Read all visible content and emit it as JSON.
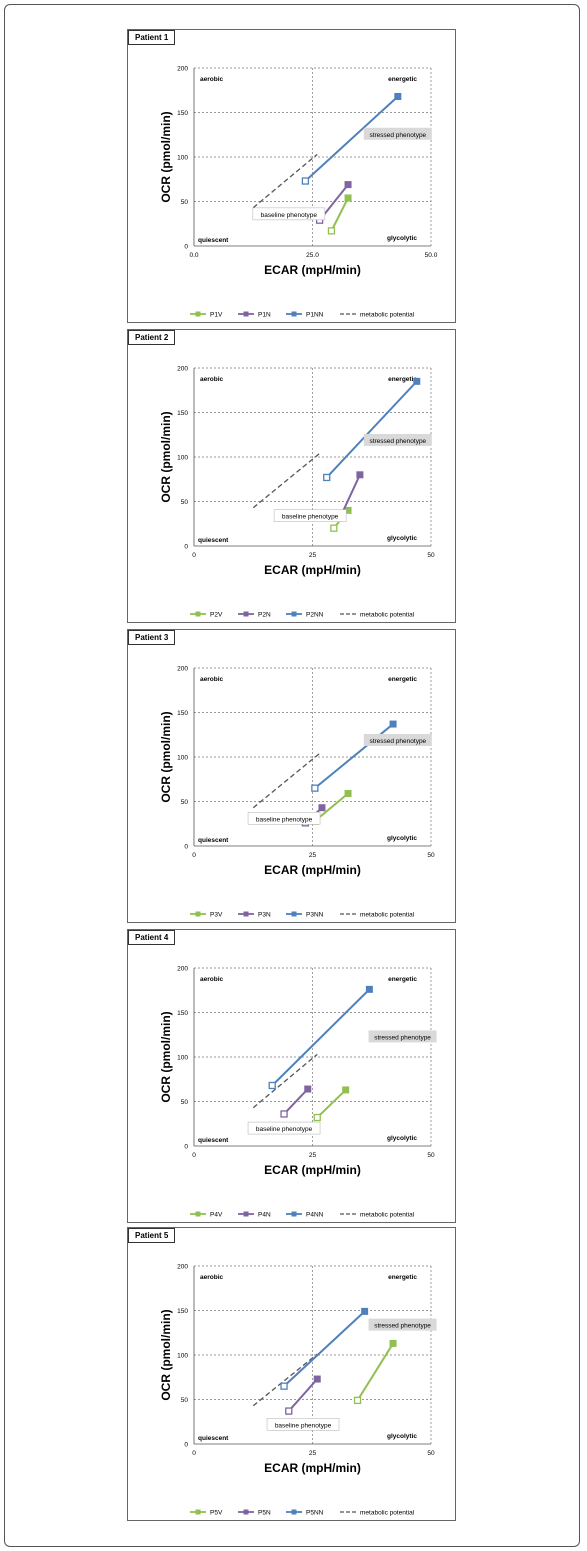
{
  "chart_data": [
    {
      "type": "line",
      "title": "Patient 1",
      "xlabel": "ECAR (mpH/min)",
      "ylabel": "OCR (pmol/min)",
      "xlim": [
        0,
        50
      ],
      "ylim": [
        0,
        200
      ],
      "xticks": [
        "0.0",
        "25.0",
        "50.0"
      ],
      "yticks": [
        "0",
        "50",
        "100",
        "150",
        "200"
      ],
      "quadrants": {
        "aerobic": "aerobic",
        "energetic": "energetic",
        "quiescent": "quiescent",
        "glycolytic": "glycolytic"
      },
      "annotations": {
        "stressed": "stressed phenotype",
        "baseline": "baseline phenotype"
      },
      "baseline_box": [
        20,
        35
      ],
      "stressed_box": [
        43,
        125
      ],
      "potential_line": [
        [
          12.5,
          43
        ],
        [
          26,
          103
        ]
      ],
      "series": [
        {
          "name": "P1V",
          "color": "#92c050",
          "points": [
            [
              29,
              17
            ],
            [
              32.5,
              54
            ]
          ]
        },
        {
          "name": "P1N",
          "color": "#8064a2",
          "points": [
            [
              26.5,
              29
            ],
            [
              32.5,
              69
            ]
          ]
        },
        {
          "name": "P1NN",
          "color": "#4f81bd",
          "points": [
            [
              23.5,
              73
            ],
            [
              43,
              168
            ]
          ]
        }
      ],
      "legend": [
        "P1V",
        "P1N",
        "P1NN",
        "metabolic potential"
      ]
    },
    {
      "type": "line",
      "title": "Patient 2",
      "xlabel": "ECAR (mpH/min)",
      "ylabel": "OCR (pmol/min)",
      "xlim": [
        0,
        50
      ],
      "ylim": [
        0,
        200
      ],
      "xticks": [
        "0",
        "25",
        "50"
      ],
      "yticks": [
        "0",
        "50",
        "100",
        "150",
        "200"
      ],
      "quadrants": {
        "aerobic": "aerobic",
        "energetic": "energetic",
        "quiescent": "quiescent",
        "glycolytic": "glycolytic"
      },
      "annotations": {
        "stressed": "stressed phenotype",
        "baseline": "baseline phenotype"
      },
      "baseline_box": [
        24.5,
        33
      ],
      "stressed_box": [
        43,
        118
      ],
      "potential_line": [
        [
          12.5,
          43
        ],
        [
          26.5,
          104
        ]
      ],
      "series": [
        {
          "name": "P2V",
          "color": "#92c050",
          "points": [
            [
              29.5,
              20
            ],
            [
              32.5,
              40
            ]
          ]
        },
        {
          "name": "P2N",
          "color": "#8064a2",
          "points": [
            [
              31,
              34
            ],
            [
              35,
              80
            ]
          ]
        },
        {
          "name": "P2NN",
          "color": "#4f81bd",
          "points": [
            [
              28,
              77
            ],
            [
              47,
              185
            ]
          ]
        }
      ],
      "legend": [
        "P2V",
        "P2N",
        "P2NN",
        "metabolic potential"
      ]
    },
    {
      "type": "line",
      "title": "Patient 3",
      "xlabel": "ECAR (mpH/min)",
      "ylabel": "OCR (pmol/min)",
      "xlim": [
        0,
        50
      ],
      "ylim": [
        0,
        200
      ],
      "xticks": [
        "0",
        "25",
        "50"
      ],
      "yticks": [
        "0",
        "50",
        "100",
        "150",
        "200"
      ],
      "quadrants": {
        "aerobic": "aerobic",
        "energetic": "energetic",
        "quiescent": "quiescent",
        "glycolytic": "glycolytic"
      },
      "annotations": {
        "stressed": "stressed phenotype",
        "baseline": "baseline phenotype"
      },
      "baseline_box": [
        19,
        30
      ],
      "stressed_box": [
        43,
        118
      ],
      "potential_line": [
        [
          12.5,
          43
        ],
        [
          26.5,
          104
        ]
      ],
      "series": [
        {
          "name": "P3V",
          "color": "#92c050",
          "points": [
            [
              25.5,
              28
            ],
            [
              32.5,
              59
            ]
          ]
        },
        {
          "name": "P3N",
          "color": "#8064a2",
          "points": [
            [
              23.5,
              26
            ],
            [
              27,
              43
            ]
          ]
        },
        {
          "name": "P3NN",
          "color": "#4f81bd",
          "points": [
            [
              25.5,
              65
            ],
            [
              42,
              137
            ]
          ]
        }
      ],
      "legend": [
        "P3V",
        "P3N",
        "P3NN",
        "metabolic potential"
      ]
    },
    {
      "type": "line",
      "title": "Patient 4",
      "xlabel": "ECAR (mpH/min)",
      "ylabel": "OCR (pmol/min)",
      "xlim": [
        0,
        50
      ],
      "ylim": [
        0,
        200
      ],
      "xticks": [
        "0",
        "25",
        "50"
      ],
      "yticks": [
        "0",
        "50",
        "100",
        "150",
        "200"
      ],
      "quadrants": {
        "aerobic": "aerobic",
        "energetic": "energetic",
        "quiescent": "quiescent",
        "glycolytic": "glycolytic"
      },
      "annotations": {
        "stressed": "stressed phenotype",
        "baseline": "baseline phenotype"
      },
      "baseline_box": [
        19,
        19
      ],
      "stressed_box": [
        44,
        122
      ],
      "potential_line": [
        [
          12.5,
          43
        ],
        [
          26,
          103
        ]
      ],
      "series": [
        {
          "name": "P4V",
          "color": "#92c050",
          "points": [
            [
              26,
              32
            ],
            [
              32,
              63
            ]
          ]
        },
        {
          "name": "P4N",
          "color": "#8064a2",
          "points": [
            [
              19,
              36
            ],
            [
              24,
              64
            ]
          ]
        },
        {
          "name": "P4NN",
          "color": "#4f81bd",
          "points": [
            [
              16.5,
              68
            ],
            [
              37,
              176
            ]
          ]
        }
      ],
      "legend": [
        "P4V",
        "P4N",
        "P4NN",
        "metabolic potential"
      ]
    },
    {
      "type": "line",
      "title": "Patient 5",
      "xlabel": "ECAR (mpH/min)",
      "ylabel": "OCR (pmol/min)",
      "xlim": [
        0,
        50
      ],
      "ylim": [
        0,
        200
      ],
      "xticks": [
        "0",
        "25",
        "50"
      ],
      "yticks": [
        "0",
        "50",
        "100",
        "150",
        "200"
      ],
      "quadrants": {
        "aerobic": "aerobic",
        "energetic": "energetic",
        "quiescent": "quiescent",
        "glycolytic": "glycolytic"
      },
      "annotations": {
        "stressed": "stressed phenotype",
        "baseline": "baseline phenotype"
      },
      "baseline_box": [
        23,
        21
      ],
      "stressed_box": [
        44,
        133
      ],
      "potential_line": [
        [
          12.5,
          43
        ],
        [
          26,
          101
        ]
      ],
      "series": [
        {
          "name": "P5V",
          "color": "#92c050",
          "points": [
            [
              34.5,
              49
            ],
            [
              42,
              113
            ]
          ]
        },
        {
          "name": "P5N",
          "color": "#8064a2",
          "points": [
            [
              20,
              37
            ],
            [
              26,
              73
            ]
          ]
        },
        {
          "name": "P5NN",
          "color": "#4f81bd",
          "points": [
            [
              19,
              65
            ],
            [
              36,
              149
            ]
          ]
        }
      ],
      "legend": [
        "P5V",
        "P5N",
        "P5NN",
        "metabolic potential"
      ]
    }
  ]
}
